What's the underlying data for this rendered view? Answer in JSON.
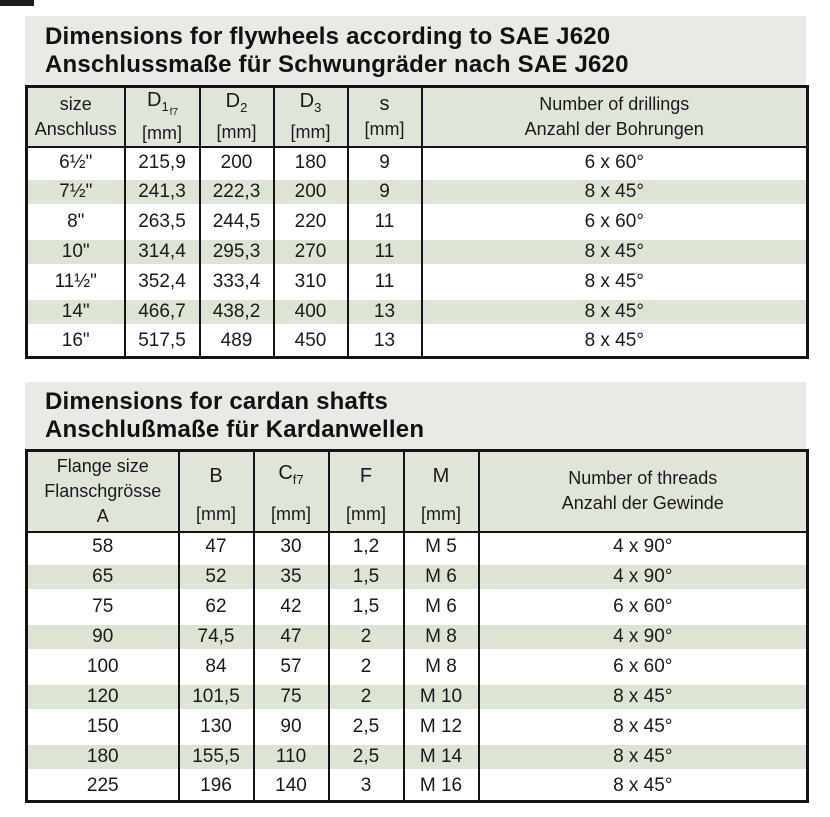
{
  "colors": {
    "page_bg": "#ffffff",
    "title_bg": "#e7ebe3",
    "header_bg": "#dfe6d9",
    "stripe_bg": "#dce4d5",
    "border": "#141414",
    "text": "#1a1a1a"
  },
  "flywheel_table": {
    "title_en": "Dimensions for flywheels according to SAE J620",
    "title_de": "Anschlussmaße für Schwungräder nach SAE J620",
    "header": {
      "col_size_line1": "size",
      "col_size_line2": "Anschluss",
      "col_d1_base": "D",
      "col_d1_sub": "1",
      "col_d1_subsub": "f7",
      "col_d1_unit": "[mm]",
      "col_d2_base": "D",
      "col_d2_sub": "2",
      "col_d2_unit": "[mm]",
      "col_d3_base": "D",
      "col_d3_sub": "3",
      "col_d3_unit": "[mm]",
      "col_s_base": "s",
      "col_s_unit": "[mm]",
      "col_drillings_line1": "Number of drillings",
      "col_drillings_line2": "Anzahl der Bohrungen"
    },
    "rows": [
      [
        "6½\"",
        "215,9",
        "200",
        "180",
        "9",
        "6 x 60°"
      ],
      [
        "7½\"",
        "241,3",
        "222,3",
        "200",
        "9",
        "8 x 45°"
      ],
      [
        "8\"",
        "263,5",
        "244,5",
        "220",
        "11",
        "6 x 60°"
      ],
      [
        "10\"",
        "314,4",
        "295,3",
        "270",
        "11",
        "8 x 45°"
      ],
      [
        "11½\"",
        "352,4",
        "333,4",
        "310",
        "11",
        "8 x 45°"
      ],
      [
        "14\"",
        "466,7",
        "438,2",
        "400",
        "13",
        "8 x 45°"
      ],
      [
        "16\"",
        "517,5",
        "489",
        "450",
        "13",
        "8 x 45°"
      ]
    ]
  },
  "cardan_table": {
    "title_en": "Dimensions for cardan shafts",
    "title_de": "Anschlußmaße für Kardanwellen",
    "header": {
      "col_flange_line1": "Flange size",
      "col_flange_line2": "Flanschgrösse",
      "col_flange_line3": "A",
      "col_b_base": "B",
      "col_b_unit": "[mm]",
      "col_c_base": "C",
      "col_c_sub": "f7",
      "col_c_unit": "[mm]",
      "col_f_base": "F",
      "col_f_unit": "[mm]",
      "col_m_base": "M",
      "col_m_unit": "[mm]",
      "col_threads_line1": "Number of threads",
      "col_threads_line2": "Anzahl der Gewinde"
    },
    "rows": [
      [
        "58",
        "47",
        "30",
        "1,2",
        "M 5",
        "4 x 90°"
      ],
      [
        "65",
        "52",
        "35",
        "1,5",
        "M 6",
        "4 x 90°"
      ],
      [
        "75",
        "62",
        "42",
        "1,5",
        "M 6",
        "6 x 60°"
      ],
      [
        "90",
        "74,5",
        "47",
        "2",
        "M 8",
        "4 x 90°"
      ],
      [
        "100",
        "84",
        "57",
        "2",
        "M 8",
        "6 x 60°"
      ],
      [
        "120",
        "101,5",
        "75",
        "2",
        "M 10",
        "8 x 45°"
      ],
      [
        "150",
        "130",
        "90",
        "2,5",
        "M 12",
        "8 x 45°"
      ],
      [
        "180",
        "155,5",
        "110",
        "2,5",
        "M 14",
        "8 x 45°"
      ],
      [
        "225",
        "196",
        "140",
        "3",
        "M 16",
        "8 x 45°"
      ]
    ]
  }
}
